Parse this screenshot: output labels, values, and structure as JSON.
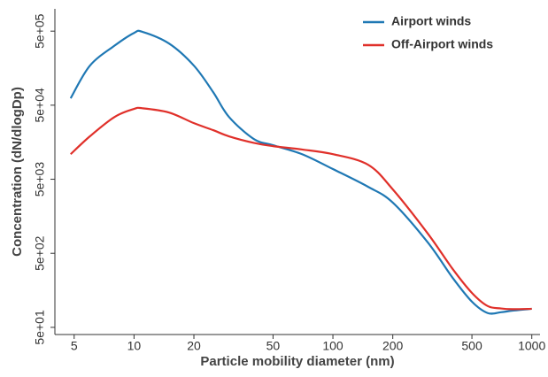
{
  "chart_data": {
    "type": "line",
    "x_label": "Particle mobility diameter (nm)",
    "y_label": "Concentration (dN/dlogDp)",
    "x": [
      4.8,
      6,
      8,
      10,
      11,
      15,
      20,
      25,
      30,
      40,
      50,
      70,
      100,
      150,
      200,
      300,
      400,
      500,
      600,
      700,
      800,
      1000
    ],
    "series": [
      {
        "name": "Airport winds",
        "color": "#1f78b4",
        "values": [
          62000,
          171000,
          320000,
          473000,
          490000,
          340000,
          171000,
          75000,
          34800,
          17500,
          14400,
          10900,
          6860,
          3960,
          2420,
          700,
          233,
          111,
          78,
          80,
          84,
          89
        ]
      },
      {
        "name": "Off-Airport winds",
        "color": "#e0302a",
        "values": [
          10900,
          19000,
          34800,
          44500,
          45500,
          39800,
          28600,
          23000,
          19000,
          15500,
          14000,
          12600,
          10900,
          7870,
          3650,
          923,
          307,
          146,
          97,
          90,
          88,
          89
        ]
      }
    ],
    "xlim": [
      4,
      1100
    ],
    "ylim": [
      40,
      1000000
    ],
    "x_log": true,
    "y_log": true,
    "xticks": [
      5,
      10,
      20,
      50,
      100,
      200,
      500,
      1000
    ],
    "yticks": [
      {
        "value": 50,
        "label": "5e+01"
      },
      {
        "value": 500,
        "label": "5e+02"
      },
      {
        "value": 5000,
        "label": "5e+03"
      },
      {
        "value": 50000,
        "label": "5e+04"
      },
      {
        "value": 500000,
        "label": "5e+05"
      }
    ],
    "legend": "top-right"
  }
}
